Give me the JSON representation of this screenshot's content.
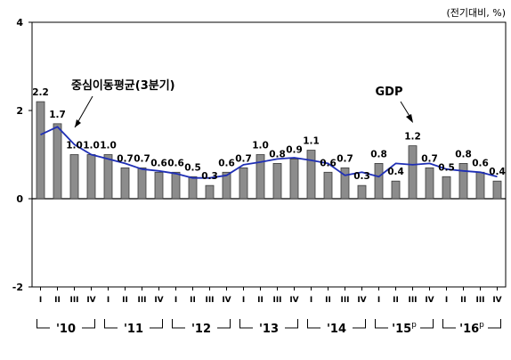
{
  "chart_data": {
    "type": "bar",
    "unit_note": "(전기대비, %)",
    "ylim": [
      -2,
      4
    ],
    "yticks": [
      -2,
      0,
      2,
      4
    ],
    "quarter_labels": [
      "I",
      "II",
      "III",
      "IV",
      "I",
      "II",
      "III",
      "IV",
      "I",
      "II",
      "III",
      "IV",
      "I",
      "II",
      "III",
      "IV",
      "I",
      "II",
      "III",
      "IV",
      "I",
      "II",
      "III",
      "IV",
      "I",
      "II",
      "III",
      "IV"
    ],
    "years": [
      {
        "label": "'10"
      },
      {
        "label": "'11"
      },
      {
        "label": "'12"
      },
      {
        "label": "'13"
      },
      {
        "label": "'14"
      },
      {
        "label": "'15",
        "sup": "p"
      },
      {
        "label": "'16",
        "sup": "p"
      }
    ],
    "series": [
      {
        "name": "GDP",
        "kind": "bar",
        "color": "#8c8c8c",
        "values": [
          2.2,
          1.7,
          1.0,
          1.0,
          1.0,
          0.7,
          0.7,
          0.6,
          0.6,
          0.5,
          0.3,
          0.6,
          0.7,
          1.0,
          0.8,
          0.9,
          1.1,
          0.6,
          0.7,
          0.3,
          0.8,
          0.4,
          1.2,
          0.7,
          0.5,
          0.8,
          0.6,
          0.4
        ]
      },
      {
        "name": "중심이동평균(3분기)",
        "kind": "line",
        "color": "#1f2fb5",
        "values": [
          1.45,
          1.63,
          1.23,
          1.0,
          0.9,
          0.8,
          0.67,
          0.63,
          0.57,
          0.47,
          0.47,
          0.53,
          0.77,
          0.83,
          0.9,
          0.93,
          0.87,
          0.8,
          0.53,
          0.6,
          0.5,
          0.8,
          0.77,
          0.8,
          0.67,
          0.63,
          0.6,
          0.5
        ]
      }
    ],
    "annotations": {
      "gdp": "GDP",
      "moving_average": "중심이동평균(3분기)"
    }
  }
}
